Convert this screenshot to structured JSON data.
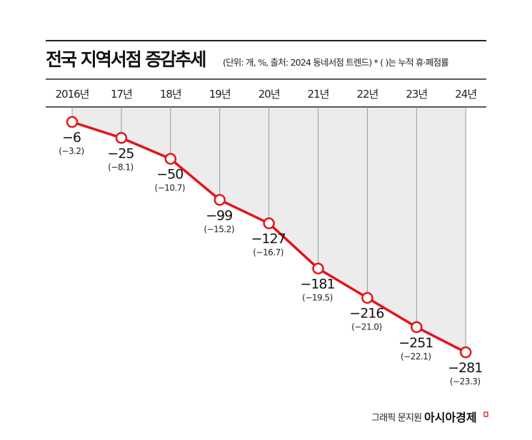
{
  "chart_data": {
    "type": "line",
    "title": "전국 지역서점 증감추세",
    "subtitle": "(단위: 개, %, 출처: 2024 동네서점 트렌드) * ( )는 누적 휴·폐점률",
    "categories": [
      "2016년",
      "17년",
      "18년",
      "19년",
      "20년",
      "21년",
      "22년",
      "23년",
      "24년"
    ],
    "values": [
      -6,
      -25,
      -50,
      -99,
      -127,
      -181,
      -216,
      -251,
      -281
    ],
    "value_labels": [
      "−6",
      "−25",
      "−50",
      "−99",
      "−127",
      "−181",
      "−216",
      "−251",
      "−281"
    ],
    "secondary_labels": [
      "(−3.2)",
      "(−8.1)",
      "(−10.7)",
      "(−15.2)",
      "(−16.7)",
      "(−19.5)",
      "(−21.0)",
      "(−22.1)",
      "(−23.3)"
    ],
    "secondary_values": [
      -3.2,
      -8.1,
      -10.7,
      -15.2,
      -16.7,
      -19.5,
      -21.0,
      -22.1,
      -23.3
    ],
    "line_color": "#e3141b",
    "fill_color": "#ececec",
    "grid": true,
    "legend": "none"
  },
  "credit": "그래픽 문지원",
  "brand": "아시아경제"
}
